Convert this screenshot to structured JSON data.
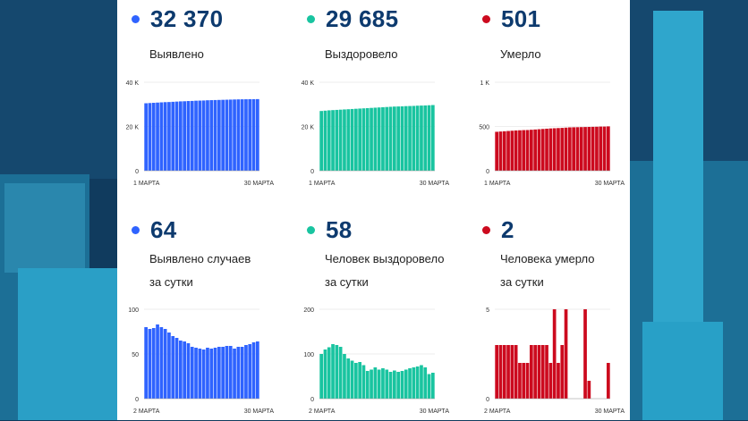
{
  "colors": {
    "blue": "#2f63ff",
    "green": "#19c4a0",
    "red": "#cc0a1e",
    "number": "#0d3a6e"
  },
  "cards": [
    {
      "value": "32 370",
      "label": "Выявлено",
      "color": "#2f63ff"
    },
    {
      "value": "29 685",
      "label": "Выздоровело",
      "color": "#19c4a0"
    },
    {
      "value": "501",
      "label": "Умерло",
      "color": "#cc0a1e"
    },
    {
      "value": "64",
      "label": "Выявлено случаев\nза сутки",
      "color": "#2f63ff"
    },
    {
      "value": "58",
      "label": "Человек выздоровело\nза сутки",
      "color": "#19c4a0"
    },
    {
      "value": "2",
      "label": "Человека умерло\nза сутки",
      "color": "#cc0a1e"
    }
  ],
  "chart_data": [
    {
      "type": "bar",
      "title": "Выявлено",
      "x_start_label": "1 МАРТА",
      "x_end_label": "30 МАРТА",
      "ylim": [
        0,
        40000
      ],
      "yticks": [
        "0",
        "20 K",
        "40 K"
      ],
      "values": [
        30500,
        30600,
        30700,
        30800,
        30900,
        31000,
        31050,
        31150,
        31250,
        31350,
        31400,
        31500,
        31550,
        31650,
        31700,
        31750,
        31850,
        31900,
        31950,
        32000,
        32050,
        32100,
        32150,
        32200,
        32250,
        32280,
        32300,
        32330,
        32350,
        32370
      ]
    },
    {
      "type": "bar",
      "title": "Выздоровело",
      "x_start_label": "1 МАРТА",
      "x_end_label": "30 МАРТА",
      "ylim": [
        0,
        40000
      ],
      "yticks": [
        "0",
        "20 K",
        "40 K"
      ],
      "values": [
        27000,
        27150,
        27300,
        27400,
        27500,
        27600,
        27700,
        27800,
        27900,
        28000,
        28100,
        28200,
        28300,
        28400,
        28500,
        28600,
        28700,
        28800,
        28900,
        29000,
        29050,
        29100,
        29200,
        29250,
        29300,
        29400,
        29450,
        29500,
        29600,
        29685
      ]
    },
    {
      "type": "bar",
      "title": "Умерло",
      "x_start_label": "1 МАРТА",
      "x_end_label": "30 МАРТА",
      "ylim": [
        0,
        1000
      ],
      "yticks": [
        "0",
        "500",
        "1 K"
      ],
      "values": [
        440,
        443,
        446,
        449,
        452,
        455,
        457,
        459,
        460,
        463,
        466,
        469,
        472,
        475,
        478,
        480,
        482,
        484,
        487,
        490,
        491,
        492,
        493,
        494,
        495,
        496,
        497,
        499,
        499,
        501
      ]
    },
    {
      "type": "bar",
      "title": "Выявлено случаев за сутки",
      "x_start_label": "2 МАРТА",
      "x_end_label": "30 МАРТА",
      "ylim": [
        0,
        100
      ],
      "yticks": [
        "0",
        "50",
        "100"
      ],
      "values": [
        80,
        78,
        79,
        83,
        80,
        78,
        74,
        70,
        68,
        65,
        64,
        62,
        58,
        57,
        56,
        55,
        57,
        56,
        57,
        58,
        58,
        59,
        59,
        56,
        58,
        58,
        60,
        61,
        63,
        64
      ]
    },
    {
      "type": "bar",
      "title": "Человек выздоровело за сутки",
      "x_start_label": "2 МАРТА",
      "x_end_label": "30 МАРТА",
      "ylim": [
        0,
        200
      ],
      "yticks": [
        "0",
        "100",
        "200"
      ],
      "values": [
        100,
        110,
        115,
        122,
        120,
        116,
        100,
        90,
        85,
        80,
        82,
        75,
        62,
        65,
        70,
        65,
        68,
        65,
        60,
        63,
        60,
        62,
        65,
        68,
        70,
        72,
        75,
        70,
        55,
        58
      ]
    },
    {
      "type": "bar",
      "title": "Человека умерло за сутки",
      "x_start_label": "2 МАРТА",
      "x_end_label": "30 МАРТА",
      "ylim": [
        0,
        5
      ],
      "yticks": [
        "0",
        "5"
      ],
      "values": [
        3,
        3,
        3,
        3,
        3,
        3,
        2,
        2,
        2,
        3,
        3,
        3,
        3,
        3,
        2,
        5,
        2,
        3,
        5,
        0,
        0,
        0,
        0,
        5,
        1,
        0,
        0,
        0,
        0,
        2
      ]
    }
  ]
}
